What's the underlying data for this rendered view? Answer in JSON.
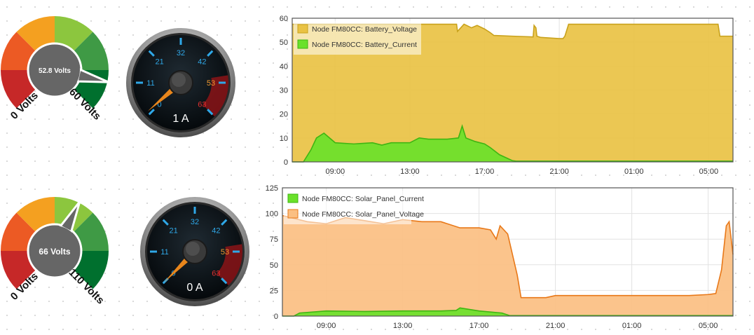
{
  "colors": {
    "red": "#c62828",
    "orange_red": "#ec5a24",
    "orange": "#f4a020",
    "light_green": "#8cc63e",
    "green": "#3f9a45",
    "dark_green": "#00702e",
    "gauge_hub": "#666666",
    "needle_orange": "#e8861c",
    "tick_blue": "#2fa8e8",
    "battery_voltage_fill": "#e9c244",
    "current_fill": "#6ae12a",
    "solar_voltage_fill": "#fbbf82",
    "solar_voltage_line": "#e87818"
  },
  "gauges": [
    {
      "segment_gauge": {
        "value": 52.8,
        "min": 0,
        "max": 60,
        "value_label": "52.8 Volts",
        "min_label": "0 Volts",
        "max_label": "60 Volts"
      },
      "dial": {
        "value": 1,
        "min": 0,
        "max": 63,
        "ticks": [
          "0",
          "11",
          "21",
          "32",
          "42",
          "53",
          "63"
        ],
        "readout": "1 A"
      }
    },
    {
      "segment_gauge": {
        "value": 66,
        "min": 0,
        "max": 110,
        "value_label": "66 Volts",
        "min_label": "0 Volts",
        "max_label": "110 Volts"
      },
      "dial": {
        "value": 0,
        "min": 0,
        "max": 63,
        "ticks": [
          "0",
          "11",
          "21",
          "32",
          "42",
          "53",
          "63"
        ],
        "readout": "0 A"
      }
    }
  ],
  "chart_data": [
    {
      "type": "area",
      "x_unit": "hour",
      "x_ticks": [
        "09:00",
        "13:00",
        "17:00",
        "21:00",
        "01:00",
        "05:00"
      ],
      "xlim": [
        6.7,
        30.3
      ],
      "ylim": [
        0,
        60
      ],
      "y_ticks": [
        "0",
        "10",
        "20",
        "30",
        "40",
        "50",
        "60"
      ],
      "legend_position": "top-left",
      "grid": true,
      "series": [
        {
          "name": "Node FM80CC: Battery_Voltage",
          "color": "#e9c244",
          "line": "#c9a21c",
          "x": [
            6.7,
            15.5,
            15.55,
            15.9,
            16.3,
            16.6,
            17.0,
            17.3,
            17.5,
            18.5,
            19.6,
            19.65,
            19.75,
            19.8,
            20.0,
            21.0,
            21.2,
            21.3,
            21.4,
            21.5,
            22.0,
            25.0,
            29.5,
            29.6,
            30.3
          ],
          "y": [
            57.5,
            57.5,
            54.5,
            57.5,
            56,
            57,
            55.5,
            54,
            52.8,
            52.5,
            52.2,
            57,
            56,
            52.5,
            52,
            51.5,
            51.5,
            52.5,
            55,
            57.5,
            57.5,
            57.5,
            57.5,
            52.5,
            52.5
          ]
        },
        {
          "name": "Node FM80CC: Battery_Current",
          "color": "#6ae12a",
          "line": "#3fb512",
          "x": [
            6.7,
            7.3,
            7.7,
            8.0,
            8.4,
            9.0,
            10.0,
            11.0,
            11.5,
            12.0,
            13.0,
            13.5,
            14.0,
            15.0,
            15.6,
            15.8,
            16.0,
            16.5,
            17.0,
            17.3,
            17.8,
            18.5,
            18.7,
            30.3
          ],
          "y": [
            0,
            0,
            5,
            10,
            12,
            8,
            7.5,
            8,
            7,
            8,
            8,
            10,
            9.5,
            9.5,
            10,
            15,
            10,
            8.5,
            7.5,
            6,
            3,
            0.5,
            0.3,
            0.3
          ]
        }
      ]
    },
    {
      "type": "area",
      "x_unit": "hour",
      "x_ticks": [
        "09:00",
        "13:00",
        "17:00",
        "21:00",
        "01:00",
        "05:00"
      ],
      "xlim": [
        6.7,
        30.3
      ],
      "ylim": [
        0,
        125
      ],
      "y_ticks": [
        "0",
        "25",
        "50",
        "75",
        "100",
        "125"
      ],
      "legend_position": "top-left",
      "grid": true,
      "series": [
        {
          "name": "Node FM80CC: Solar_Panel_Voltage",
          "color": "#fbbf82",
          "line": "#e87818",
          "x": [
            6.7,
            8.0,
            9.0,
            10.0,
            11.0,
            12.0,
            13.0,
            14.0,
            15.0,
            16.0,
            17.0,
            17.6,
            17.9,
            18.1,
            18.5,
            19.0,
            19.2,
            20.5,
            21.0,
            24.0,
            28.0,
            29.0,
            29.4,
            29.7,
            29.95,
            30.1,
            30.3
          ],
          "y": [
            98,
            92,
            90,
            96,
            93,
            90,
            94,
            92,
            92,
            86,
            86,
            84,
            75,
            88,
            80,
            40,
            18,
            18,
            20,
            20,
            20,
            21,
            22,
            45,
            88,
            92,
            60
          ]
        },
        {
          "name": "Node FM80CC: Solar_Panel_Current",
          "color": "#6ae12a",
          "line": "#3fb512",
          "x": [
            6.7,
            7.3,
            7.6,
            9.0,
            11.0,
            13.0,
            15.0,
            15.8,
            16.0,
            17.0,
            18.2,
            18.6,
            30.3
          ],
          "y": [
            0,
            0,
            3,
            5,
            4.5,
            5,
            5,
            5.5,
            8,
            5,
            3,
            0.5,
            0.5
          ]
        }
      ]
    }
  ]
}
